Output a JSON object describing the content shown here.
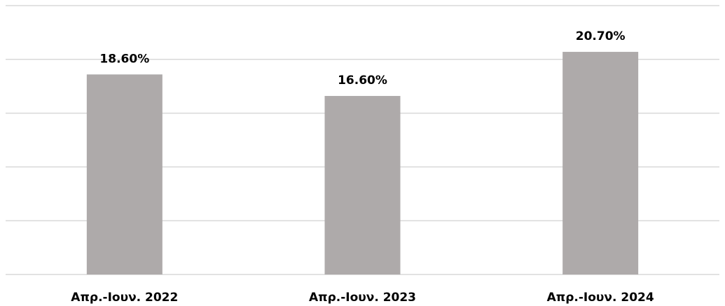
{
  "chart_data": {
    "type": "bar",
    "categories": [
      "Απρ.-Ιουν. 2022",
      "Απρ.-Ιουν. 2023",
      "Απρ.-Ιουν. 2024"
    ],
    "values": [
      18.6,
      16.6,
      20.7
    ],
    "data_labels": [
      "18.60%",
      "16.60%",
      "20.70%"
    ],
    "title": "",
    "xlabel": "",
    "ylabel": "",
    "ylim": [
      0,
      25
    ],
    "grid": true,
    "legend": "none",
    "colors": {
      "bar": "#aeaaaa",
      "grid": "#d9d9d9",
      "text": "#000000"
    }
  }
}
